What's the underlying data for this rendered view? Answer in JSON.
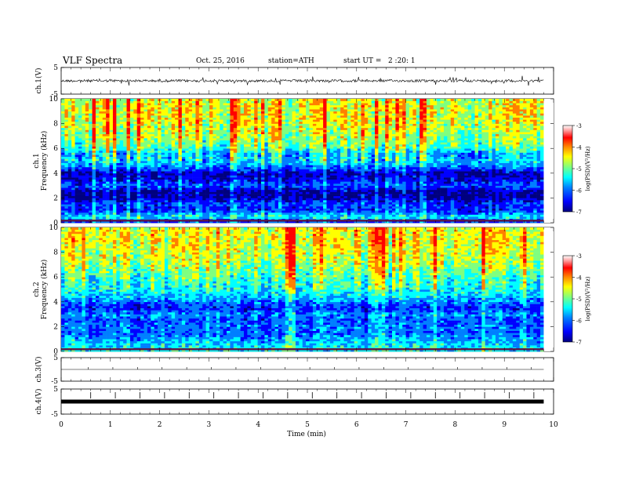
{
  "header": {
    "title": "VLF Spectra",
    "date": "Oct. 25, 2016",
    "station": "station=ATH",
    "start": "start UT =   2 :20: 1"
  },
  "colors": {
    "jet": [
      "#00007f",
      "#0000ff",
      "#007fff",
      "#00ffff",
      "#7fff7f",
      "#ffff00",
      "#ff7f00",
      "#ff0000",
      "#ff9a9a",
      "#ffffff"
    ]
  },
  "chart_data": [
    {
      "type": "line",
      "panel": "ch1-waveform",
      "ylabel": "ch.1(V)",
      "ylim": [
        -5,
        5
      ],
      "yticks": [
        "5",
        "-5"
      ],
      "xlim": [
        0,
        10
      ],
      "series": [
        {
          "baseline": 0,
          "spread": 0.8
        }
      ]
    },
    {
      "type": "heatmap",
      "panel": "ch1-spectrogram",
      "ylabel": "ch.1 Frequency (kHz)",
      "ylim": [
        0,
        10
      ],
      "yticks": [
        "0",
        "2",
        "4",
        "6",
        "8",
        "10"
      ],
      "xlim": [
        0,
        9.8
      ],
      "band_profile_kHz": [
        {
          "f": 0.0,
          "v": -6.2
        },
        {
          "f": 0.5,
          "v": -5.3
        },
        {
          "f": 1.0,
          "v": -6.2
        },
        {
          "f": 1.5,
          "v": -6.0
        },
        {
          "f": 2.0,
          "v": -6.6
        },
        {
          "f": 2.5,
          "v": -6.7
        },
        {
          "f": 3.0,
          "v": -5.9
        },
        {
          "f": 3.5,
          "v": -6.4
        },
        {
          "f": 4.0,
          "v": -6.6
        },
        {
          "f": 4.5,
          "v": -5.8
        },
        {
          "f": 5.0,
          "v": -5.4
        },
        {
          "f": 5.5,
          "v": -5.6
        },
        {
          "f": 6.0,
          "v": -5.0
        },
        {
          "f": 7.0,
          "v": -4.6
        },
        {
          "f": 8.0,
          "v": -4.4
        },
        {
          "f": 9.0,
          "v": -4.3
        },
        {
          "f": 10.0,
          "v": -4.4
        }
      ],
      "colorbar": {
        "label": "log(PSD)(V²/Hz)",
        "range": [
          -7,
          -3
        ],
        "ticks": [
          "-3",
          "-4",
          "-5",
          "-6",
          "-7"
        ]
      }
    },
    {
      "type": "heatmap",
      "panel": "ch2-spectrogram",
      "ylabel": "ch.2 Frequency (kHz)",
      "ylim": [
        0,
        10
      ],
      "yticks": [
        "0",
        "2",
        "4",
        "6",
        "8",
        "10"
      ],
      "xlim": [
        0,
        9.8
      ],
      "band_profile_kHz": [
        {
          "f": 0.0,
          "v": -5.2
        },
        {
          "f": 0.5,
          "v": -5.4
        },
        {
          "f": 1.0,
          "v": -5.6
        },
        {
          "f": 1.5,
          "v": -5.9
        },
        {
          "f": 2.0,
          "v": -5.8
        },
        {
          "f": 2.5,
          "v": -6.0
        },
        {
          "f": 3.0,
          "v": -5.7
        },
        {
          "f": 3.5,
          "v": -6.2
        },
        {
          "f": 4.0,
          "v": -5.8
        },
        {
          "f": 4.5,
          "v": -5.4
        },
        {
          "f": 5.0,
          "v": -5.2
        },
        {
          "f": 5.5,
          "v": -5.1
        },
        {
          "f": 6.0,
          "v": -5.0
        },
        {
          "f": 7.0,
          "v": -4.6
        },
        {
          "f": 8.0,
          "v": -4.4
        },
        {
          "f": 9.0,
          "v": -4.3
        },
        {
          "f": 10.0,
          "v": -4.3
        }
      ],
      "colorbar": {
        "label": "log(PSD)(V²/Hz)",
        "range": [
          -7,
          -3
        ],
        "ticks": [
          "-3",
          "-4",
          "-5",
          "-6",
          "-7"
        ]
      }
    },
    {
      "type": "line",
      "panel": "ch3-waveform",
      "ylabel": "ch.3(V)",
      "ylim": [
        -5,
        5
      ],
      "yticks": [
        "5",
        "-5"
      ],
      "xlim": [
        0,
        10
      ],
      "series": [
        {
          "baseline": 0,
          "spread": 0.0
        }
      ]
    },
    {
      "type": "line",
      "panel": "ch4-waveform",
      "ylabel": "ch.4(V)",
      "ylim": [
        -5,
        5
      ],
      "yticks": [
        "5",
        "-5"
      ],
      "xlim": [
        0,
        10
      ],
      "series": [
        {
          "baseline": 0,
          "spread": 0.2
        }
      ]
    }
  ],
  "xaxis": {
    "label": "Time (min)",
    "ticks": [
      "0",
      "1",
      "2",
      "3",
      "4",
      "5",
      "6",
      "7",
      "8",
      "9",
      "10"
    ],
    "range": [
      0,
      10
    ]
  }
}
